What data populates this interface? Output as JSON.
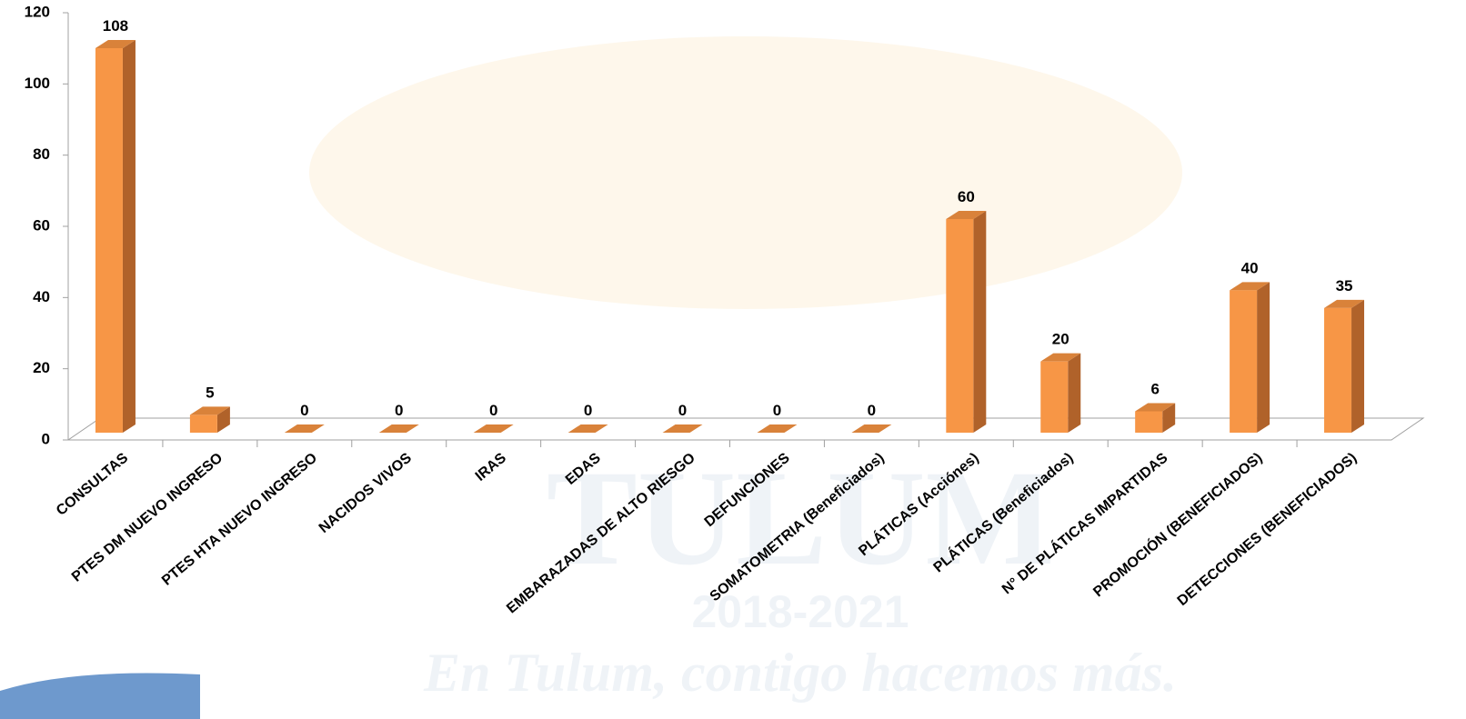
{
  "chart_data": {
    "type": "bar3d",
    "categories": [
      "CONSULTAS",
      "PTES DM NUEVO INGRESO",
      "PTES HTA NUEVO INGRESO",
      "NACIDOS VIVOS",
      "IRAS",
      "EDAS",
      "EMBARAZADAS DE ALTO RIESGO",
      "DEFUNCIONES",
      "SOMATOMETRIA (Beneficiados)",
      "PLÁTICAS (Acciónes)",
      "PLÁTICAS (Beneficiados)",
      "N° DE PLÁTICAS IMPARTIDAS",
      "PROMOCIÓN (BENEFICIADOS)",
      "DETECCIONES (BENEFICIADOS)"
    ],
    "values": [
      108,
      5,
      0,
      0,
      0,
      0,
      0,
      0,
      0,
      60,
      20,
      6,
      40,
      35
    ],
    "color": "#f79646",
    "ylim": [
      0,
      120
    ],
    "yticks": [
      0,
      20,
      40,
      60,
      80,
      100,
      120
    ],
    "watermark": [
      "TULUM",
      "2018-2021",
      "En Tulum, contigo hacemos más."
    ]
  }
}
